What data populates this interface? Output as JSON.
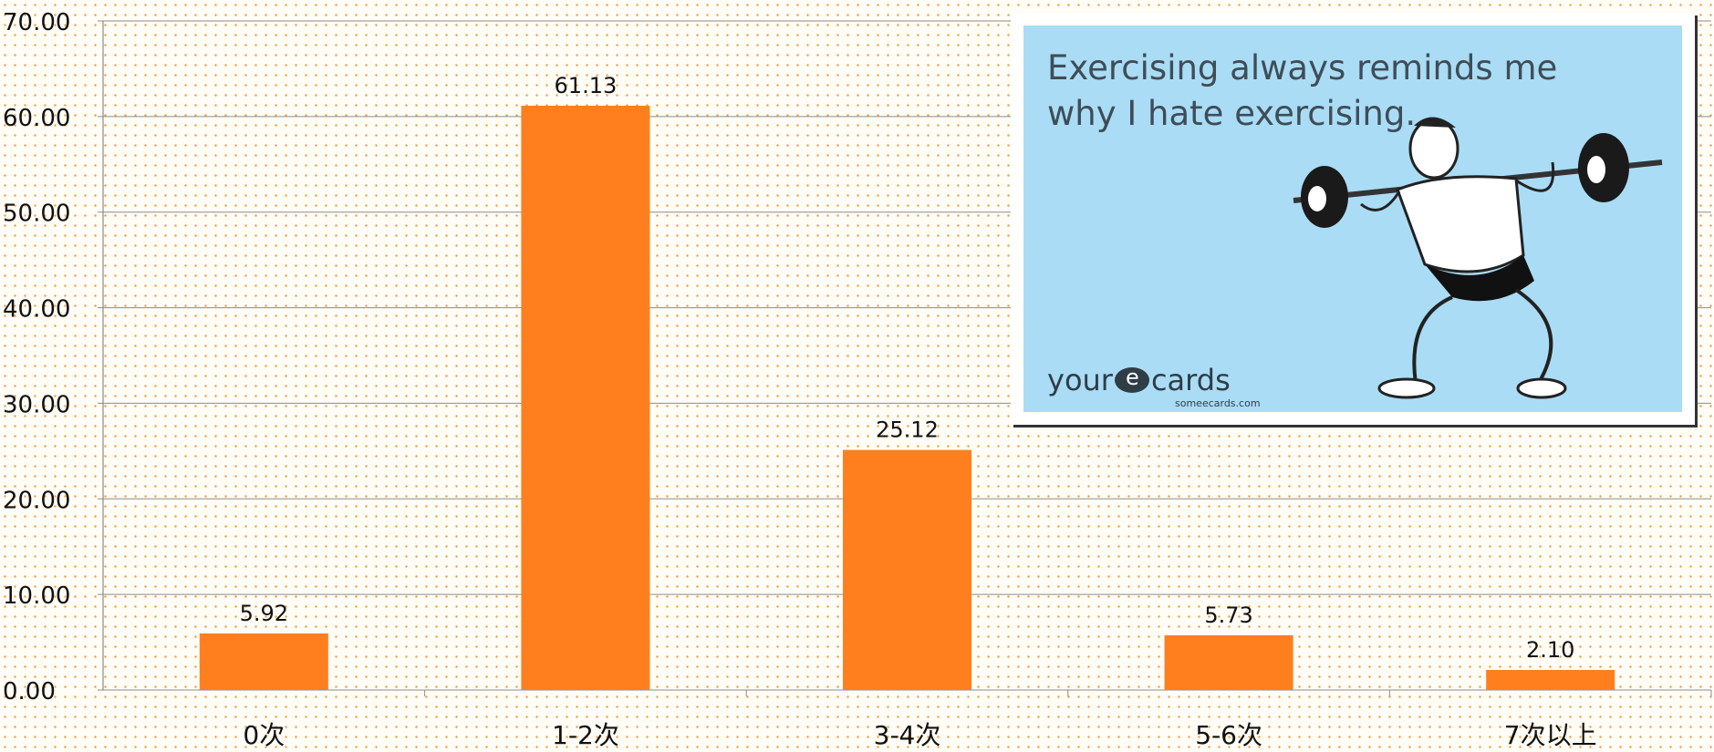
{
  "chart_data": {
    "type": "bar",
    "categories": [
      "0次",
      "1-2次",
      "3-4次",
      "5-6次",
      "7次以上"
    ],
    "values": [
      5.92,
      61.13,
      25.12,
      5.73,
      2.1
    ],
    "value_labels": [
      "5.92",
      "61.13",
      "25.12",
      "5.73",
      "2.10"
    ],
    "y_ticks": [
      "0.00",
      "10.00",
      "20.00",
      "30.00",
      "40.00",
      "50.00",
      "60.00",
      "70.00"
    ],
    "ylim": [
      0,
      70
    ],
    "grid": true,
    "legend": "none",
    "bar_color": "#ff7f1f",
    "grid_color": "#8c8c8c"
  },
  "ecard": {
    "caption": "Exercising always reminds me why I hate exercising.",
    "logo_left": "your",
    "logo_right": "cards",
    "logo_sub": "someecards.com",
    "background_color": "#aadcf5"
  }
}
